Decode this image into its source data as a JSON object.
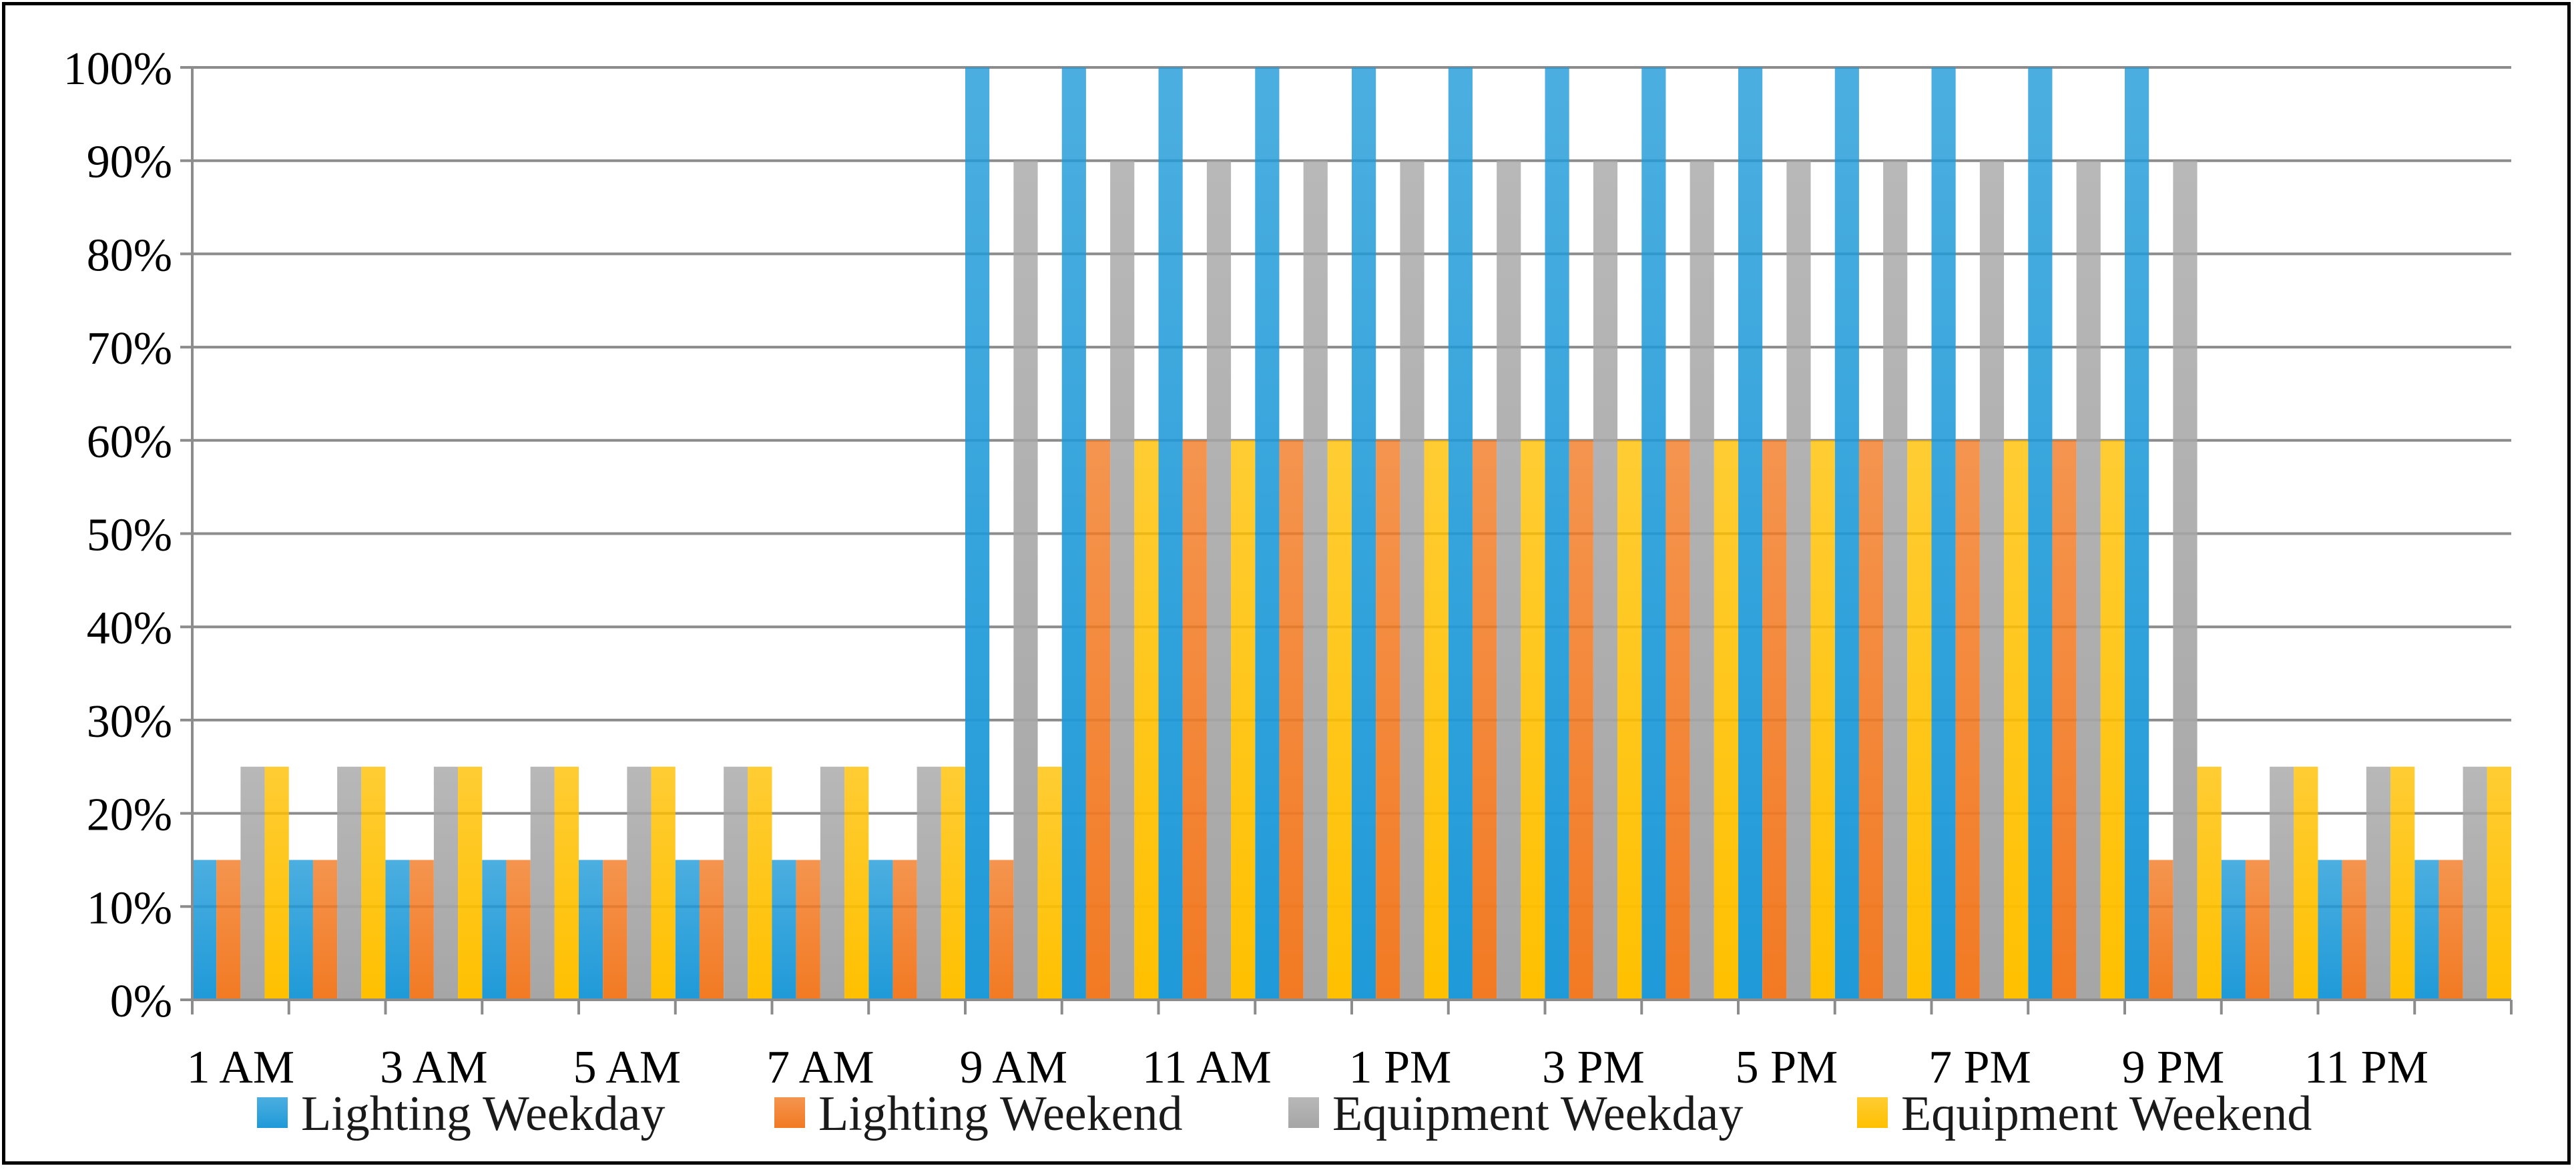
{
  "chart_data": {
    "type": "bar",
    "title": "",
    "xlabel": "",
    "ylabel": "",
    "ylim": [
      0,
      100
    ],
    "y_ticks": [
      "0%",
      "10%",
      "20%",
      "30%",
      "40%",
      "50%",
      "60%",
      "70%",
      "80%",
      "90%",
      "100%"
    ],
    "y_tick_values": [
      0,
      10,
      20,
      30,
      40,
      50,
      60,
      70,
      80,
      90,
      100
    ],
    "categories": [
      "1 AM",
      "2 AM",
      "3 AM",
      "4 AM",
      "5 AM",
      "6 AM",
      "7 AM",
      "8 AM",
      "9 AM",
      "10 AM",
      "11 AM",
      "12 PM",
      "1 PM",
      "2 PM",
      "3 PM",
      "4 PM",
      "5 PM",
      "6 PM",
      "7 PM",
      "8 PM",
      "9 PM",
      "10 PM",
      "11 PM",
      "12 AM"
    ],
    "category_labels_shown": [
      "1 AM",
      "",
      "3 AM",
      "",
      "5 AM",
      "",
      "7 AM",
      "",
      "9 AM",
      "",
      "11 AM",
      "",
      "1 PM",
      "",
      "3 PM",
      "",
      "5 PM",
      "",
      "7 PM",
      "",
      "9 PM",
      "",
      "11 PM",
      ""
    ],
    "grid": true,
    "legend_position": "bottom",
    "series": [
      {
        "name": "Lighting Weekday",
        "color": "#1f9ad8",
        "values": [
          15,
          15,
          15,
          15,
          15,
          15,
          15,
          15,
          100,
          100,
          100,
          100,
          100,
          100,
          100,
          100,
          100,
          100,
          100,
          100,
          100,
          15,
          15,
          15
        ]
      },
      {
        "name": "Lighting Weekend",
        "color": "#f27a23",
        "values": [
          15,
          15,
          15,
          15,
          15,
          15,
          15,
          15,
          15,
          60,
          60,
          60,
          60,
          60,
          60,
          60,
          60,
          60,
          60,
          60,
          15,
          15,
          15,
          15
        ]
      },
      {
        "name": "Equipment Weekday",
        "color": "#a6a6a6",
        "values": [
          25,
          25,
          25,
          25,
          25,
          25,
          25,
          25,
          90,
          90,
          90,
          90,
          90,
          90,
          90,
          90,
          90,
          90,
          90,
          90,
          90,
          25,
          25,
          25
        ]
      },
      {
        "name": "Equipment Weekend",
        "color": "#ffc000",
        "values": [
          25,
          25,
          25,
          25,
          25,
          25,
          25,
          25,
          25,
          60,
          60,
          60,
          60,
          60,
          60,
          60,
          60,
          60,
          60,
          60,
          25,
          25,
          25,
          25
        ]
      }
    ]
  }
}
